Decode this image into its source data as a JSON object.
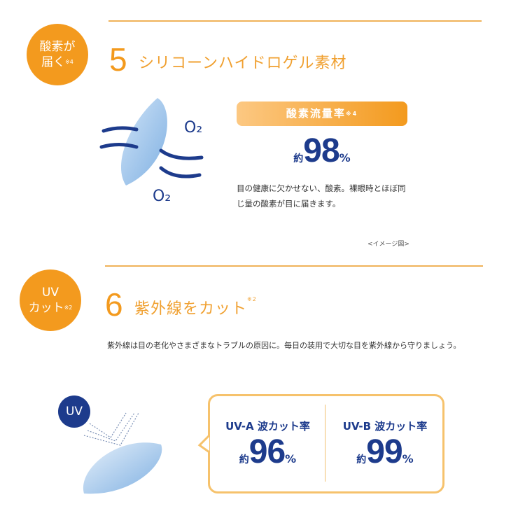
{
  "section5": {
    "badge_line1": "酸素が",
    "badge_line2": "届く",
    "badge_note": "※4",
    "number": "5",
    "title": "シリコーンハイドロゲル素材",
    "o2_label": "O₂",
    "pill_label": "酸素流量率",
    "pill_note": "※4",
    "stat_prefix": "約",
    "stat_value": "98",
    "stat_unit": "%",
    "description": "目の健康に欠かせない、酸素。裸眼時とほぼ同じ量の酸素が目に届きます。",
    "caption": "<イメージ図>"
  },
  "section6": {
    "badge_line1": "UV",
    "badge_line2": "カット",
    "badge_note": "※2",
    "number": "6",
    "title": "紫外線をカット",
    "title_note": "※2",
    "description": "紫外線は目の老化やさまざまなトラブルの原因に。毎日の装用で大切な目を紫外線から守りましょう。",
    "uv_icon_label": "UV",
    "uva": {
      "label": "UV-A 波カット率",
      "prefix": "約",
      "value": "96",
      "unit": "%"
    },
    "uvb": {
      "label": "UV-B 波カット率",
      "prefix": "約",
      "value": "99",
      "unit": "%"
    }
  },
  "colors": {
    "accent": "#f39a1e",
    "navy": "#1d3b8c",
    "lens": "#9cc3ea"
  }
}
